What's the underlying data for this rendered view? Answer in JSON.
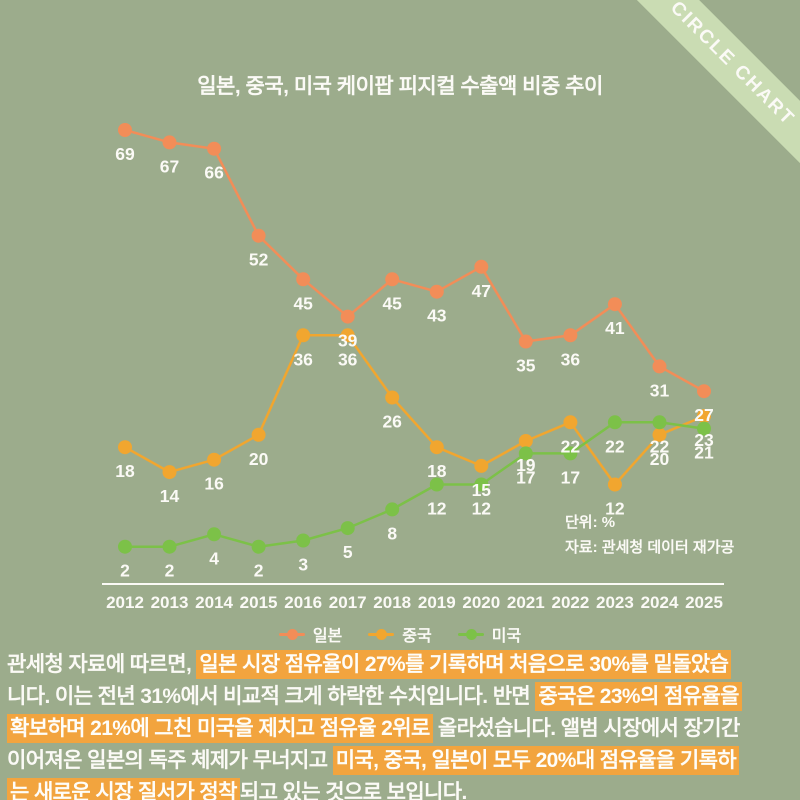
{
  "ribbon": {
    "label": "CIRCLE CHART"
  },
  "title": "일본, 중국, 미국 케이팝 피지컬 수출액 비중 추이",
  "annotation": {
    "unit": "단위: %",
    "source": "자료: 관세청 데이터 재가공"
  },
  "chart_data": {
    "type": "line",
    "title": "일본, 중국, 미국 케이팝 피지컬 수출액 비중 추이",
    "x": [
      "2012",
      "2013",
      "2014",
      "2015",
      "2016",
      "2017",
      "2018",
      "2019",
      "2020",
      "2021",
      "2022",
      "2023",
      "2024",
      "2025"
    ],
    "series": [
      {
        "key": "japan",
        "name": "일본",
        "color": "#F28D58",
        "values": [
          69,
          67,
          66,
          52,
          45,
          39,
          45,
          43,
          47,
          35,
          36,
          41,
          31,
          27
        ]
      },
      {
        "key": "china",
        "name": "중국",
        "color": "#F1A62F",
        "values": [
          18,
          14,
          16,
          20,
          36,
          36,
          26,
          18,
          15,
          19,
          22,
          12,
          20,
          23
        ]
      },
      {
        "key": "usa",
        "name": "미국",
        "color": "#7CC148",
        "values": [
          2,
          2,
          4,
          2,
          3,
          5,
          8,
          12,
          12,
          17,
          17,
          22,
          22,
          21
        ]
      }
    ],
    "unit": "%",
    "ylim": [
      0,
      75
    ],
    "grid": false,
    "legend_position": "bottom",
    "data_labels": true
  },
  "legend": {
    "items": [
      {
        "key": "japan",
        "label": "일본",
        "color": "#F28D58"
      },
      {
        "key": "china",
        "label": "중국",
        "color": "#F1A62F"
      },
      {
        "key": "usa",
        "label": "미국",
        "color": "#7CC148"
      }
    ]
  },
  "paragraph": {
    "lines": [
      [
        {
          "t": "관세청 자료에 따르면, ",
          "h": false
        },
        {
          "t": "일본 시장 점유율이 27%를 기록하며 처음으로 30%를 밑돌았습",
          "h": true
        }
      ],
      [
        {
          "t": "니다. 이는 전년 31%에서 비교적 크게 하락한 수치입니다. 반면 ",
          "h": false
        },
        {
          "t": "중국은 23%의 점유율을",
          "h": true
        }
      ],
      [
        {
          "t": "확보하며 21%에 그친 미국을 제치고 점유율 2위로",
          "h": true
        },
        {
          "t": " 올라섰습니다. 앨범 시장에서 장기간",
          "h": false
        }
      ],
      [
        {
          "t": "이어져온 일본의 독주 체제가 무너지고 ",
          "h": false
        },
        {
          "t": "미국, 중국, 일본이 모두 20%대 점유율을 기록하",
          "h": true
        }
      ],
      [
        {
          "t": "는 새로운 시장 질서가 정착",
          "h": true
        },
        {
          "t": "되고 있는 것으로 보입니다.",
          "h": false
        }
      ]
    ]
  },
  "colors": {
    "background": "#9CAC8C",
    "ribbon_bg": "#CADCB3",
    "text_white": "#FBFAF6",
    "highlight_bg": "#F2A43E",
    "axis_line": "#FBFAF6"
  }
}
